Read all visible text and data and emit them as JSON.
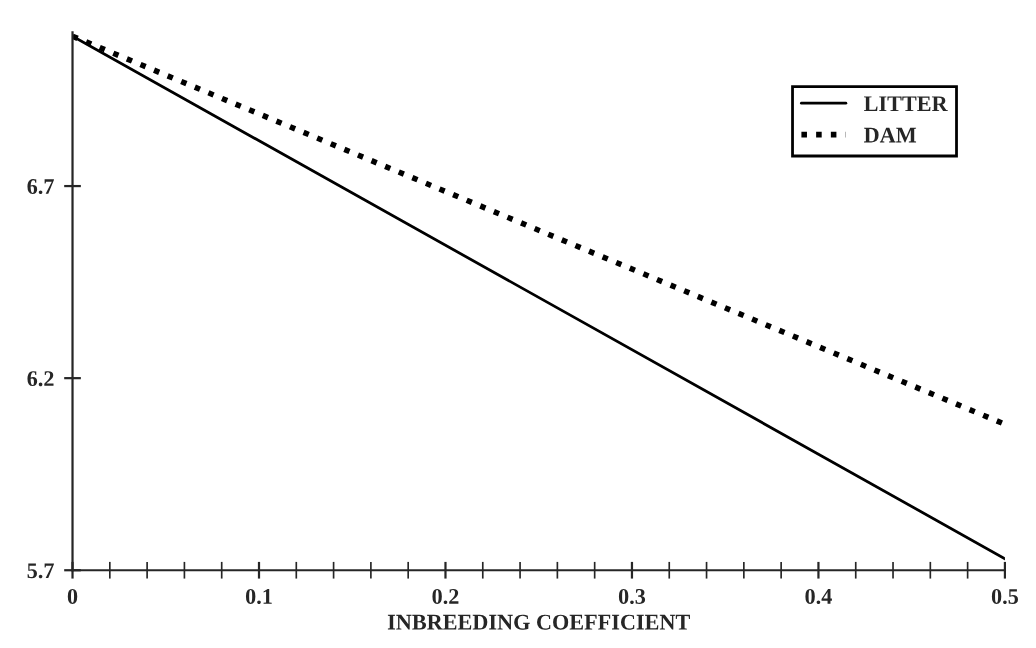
{
  "chart_data": {
    "type": "line",
    "xlabel": "INBREEDING COEFFICIENT",
    "x": [
      0,
      0.5
    ],
    "series": [
      {
        "name": "LITTER",
        "color": "#000000",
        "values": [
          7.09,
          5.73
        ],
        "line_style": "solid"
      },
      {
        "name": "DAM",
        "color": "#000000",
        "values": [
          7.09,
          6.08
        ],
        "line_style": "dotted"
      }
    ],
    "xlim": [
      0,
      0.5
    ],
    "xticks": [
      0,
      0.1,
      0.2,
      0.3,
      0.4,
      0.5
    ],
    "ylim": [
      5.7,
      7.1
    ],
    "yticks": [
      5.7,
      6.2,
      6.7
    ],
    "grid": false,
    "legend": "top right",
    "marker": "none"
  }
}
